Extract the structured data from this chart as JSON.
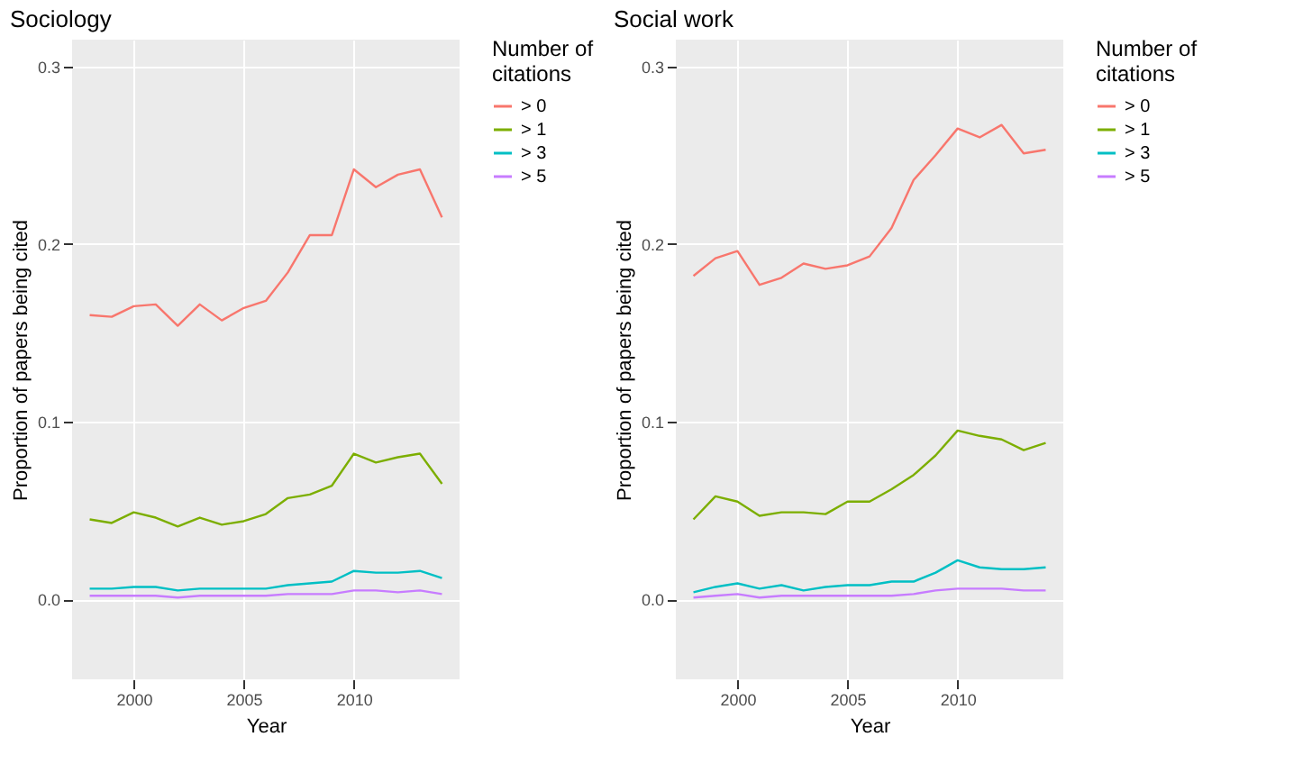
{
  "chart_data": [
    {
      "type": "line",
      "title": "Sociology",
      "xlabel": "Year",
      "ylabel": "Proportion of papers being cited",
      "legend_title": "Number of citations",
      "legend": "right",
      "grid": true,
      "line_style": "solid",
      "x": [
        1998,
        1999,
        2000,
        2001,
        2002,
        2003,
        2004,
        2005,
        2006,
        2007,
        2008,
        2009,
        2010,
        2011,
        2012,
        2013,
        2014
      ],
      "xlim": [
        1997.2,
        2014.8
      ],
      "xticks": [
        2000,
        2005,
        2010
      ],
      "ylim": [
        -0.045,
        0.315
      ],
      "yticks": [
        {
          "value": 0,
          "label": "0.0"
        },
        0.1,
        0.2,
        0.3
      ],
      "series": [
        {
          "name": "> 0",
          "color": "#f8766d",
          "values": [
            0.16,
            0.159,
            0.165,
            0.166,
            0.154,
            0.166,
            0.157,
            0.164,
            0.168,
            0.184,
            0.205,
            0.205,
            0.242,
            0.232,
            0.239,
            0.242,
            0.215
          ]
        },
        {
          "name": "> 1",
          "color": "#7cae00",
          "values": [
            0.045,
            0.043,
            0.049,
            0.046,
            0.041,
            0.046,
            0.042,
            0.044,
            0.048,
            0.057,
            0.059,
            0.064,
            0.082,
            0.077,
            0.08,
            0.082,
            0.065
          ]
        },
        {
          "name": "> 3",
          "color": "#00bfc4",
          "values": [
            0.006,
            0.006,
            0.007,
            0.007,
            0.005,
            0.006,
            0.006,
            0.006,
            0.006,
            0.008,
            0.009,
            0.01,
            0.016,
            0.015,
            0.015,
            0.016,
            0.012
          ]
        },
        {
          "name": "> 5",
          "color": "#c77cff",
          "values": [
            0.002,
            0.002,
            0.002,
            0.002,
            0.001,
            0.002,
            0.002,
            0.002,
            0.002,
            0.003,
            0.003,
            0.003,
            0.005,
            0.005,
            0.004,
            0.005,
            0.003
          ]
        }
      ]
    },
    {
      "type": "line",
      "title": "Social work",
      "xlabel": "Year",
      "ylabel": "Proportion of papers being cited",
      "legend_title": "Number of citations",
      "legend": "right",
      "grid": true,
      "line_style": "solid",
      "x": [
        1998,
        1999,
        2000,
        2001,
        2002,
        2003,
        2004,
        2005,
        2006,
        2007,
        2008,
        2009,
        2010,
        2011,
        2012,
        2013,
        2014
      ],
      "xlim": [
        1997.2,
        2014.8
      ],
      "xticks": [
        2000,
        2005,
        2010
      ],
      "ylim": [
        -0.045,
        0.315
      ],
      "yticks": [
        {
          "value": 0,
          "label": "0.0"
        },
        0.1,
        0.2,
        0.3
      ],
      "series": [
        {
          "name": "> 0",
          "color": "#f8766d",
          "values": [
            0.182,
            0.192,
            0.196,
            0.177,
            0.181,
            0.189,
            0.186,
            0.188,
            0.193,
            0.209,
            0.236,
            0.25,
            0.265,
            0.26,
            0.267,
            0.251,
            0.253
          ]
        },
        {
          "name": "> 1",
          "color": "#7cae00",
          "values": [
            0.045,
            0.058,
            0.055,
            0.047,
            0.049,
            0.049,
            0.048,
            0.055,
            0.055,
            0.062,
            0.07,
            0.081,
            0.095,
            0.092,
            0.09,
            0.084,
            0.088
          ]
        },
        {
          "name": "> 3",
          "color": "#00bfc4",
          "values": [
            0.004,
            0.007,
            0.009,
            0.006,
            0.008,
            0.005,
            0.007,
            0.008,
            0.008,
            0.01,
            0.01,
            0.015,
            0.022,
            0.018,
            0.017,
            0.017,
            0.018
          ]
        },
        {
          "name": "> 5",
          "color": "#c77cff",
          "values": [
            0.001,
            0.002,
            0.003,
            0.001,
            0.002,
            0.002,
            0.002,
            0.002,
            0.002,
            0.002,
            0.003,
            0.005,
            0.006,
            0.006,
            0.006,
            0.005,
            0.005
          ]
        }
      ]
    }
  ]
}
